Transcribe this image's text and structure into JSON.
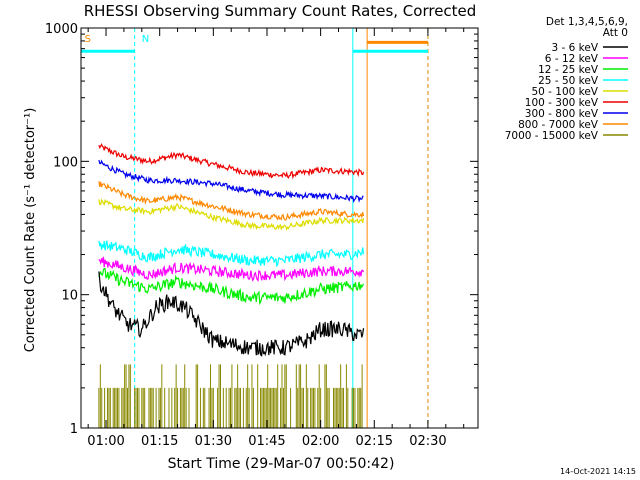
{
  "chart_data": {
    "type": "line",
    "title": "RHESSI Observing Summary Count Rates, Corrected",
    "xlabel": "Start Time (29-Mar-07 00:50:42)",
    "ylabel": "Corrected Count Rate (s⁻¹ detector⁻¹)",
    "y_scale": "log",
    "ylim": [
      1,
      1000
    ],
    "y_ticks": [
      {
        "value": 1,
        "label": "1"
      },
      {
        "value": 10,
        "label": "10"
      },
      {
        "value": 100,
        "label": "100"
      },
      {
        "value": 1000,
        "label": "1000"
      }
    ],
    "xlim_minutes": [
      -7,
      104
    ],
    "x_ticks": [
      {
        "minutes": 0,
        "label": "01:00"
      },
      {
        "minutes": 15,
        "label": "01:15"
      },
      {
        "minutes": 30,
        "label": "01:30"
      },
      {
        "minutes": 45,
        "label": "01:45"
      },
      {
        "minutes": 60,
        "label": "02:00"
      },
      {
        "minutes": 75,
        "label": "02:15"
      },
      {
        "minutes": 90,
        "label": "02:30"
      }
    ],
    "legend": {
      "placement": "right",
      "header": [
        "Det 1,3,4,5,6,9,",
        "Att 0"
      ],
      "entries": [
        {
          "label": "3 - 6 keV",
          "color": "#000000"
        },
        {
          "label": "6 - 12 keV",
          "color": "#ff00ff"
        },
        {
          "label": "12 - 25 keV",
          "color": "#00ee00"
        },
        {
          "label": "25 - 50 keV",
          "color": "#00ffff"
        },
        {
          "label": "50 - 100 keV",
          "color": "#dddd00"
        },
        {
          "label": "100 - 300 keV",
          "color": "#ee0000"
        },
        {
          "label": "300 - 800 keV",
          "color": "#0000ee"
        },
        {
          "label": "800 - 7000 keV",
          "color": "#ff8800"
        },
        {
          "label": "7000 - 15000 keV",
          "color": "#888800"
        }
      ]
    },
    "series": [
      {
        "name": "100 - 300 keV",
        "color": "#ee0000",
        "noise": 0.05,
        "end_minutes": 72,
        "points": [
          [
            -2,
            130
          ],
          [
            5,
            108
          ],
          [
            12,
            100
          ],
          [
            20,
            112
          ],
          [
            30,
            95
          ],
          [
            40,
            82
          ],
          [
            50,
            78
          ],
          [
            60,
            86
          ],
          [
            68,
            84
          ],
          [
            72,
            82
          ]
        ]
      },
      {
        "name": "300 - 800 keV",
        "color": "#0000ee",
        "noise": 0.05,
        "end_minutes": 72,
        "points": [
          [
            -2,
            98
          ],
          [
            5,
            80
          ],
          [
            12,
            72
          ],
          [
            20,
            72
          ],
          [
            30,
            68
          ],
          [
            40,
            60
          ],
          [
            50,
            56
          ],
          [
            60,
            55
          ],
          [
            68,
            53
          ],
          [
            72,
            52
          ]
        ]
      },
      {
        "name": "800 - 7000 keV",
        "color": "#ff8800",
        "noise": 0.05,
        "end_minutes": 72,
        "points": [
          [
            -2,
            68
          ],
          [
            5,
            56
          ],
          [
            12,
            50
          ],
          [
            20,
            54
          ],
          [
            30,
            46
          ],
          [
            40,
            40
          ],
          [
            50,
            38
          ],
          [
            60,
            42
          ],
          [
            68,
            40
          ],
          [
            72,
            40
          ]
        ]
      },
      {
        "name": "50 - 100 keV",
        "color": "#dddd00",
        "noise": 0.05,
        "end_minutes": 72,
        "points": [
          [
            -2,
            50
          ],
          [
            5,
            44
          ],
          [
            12,
            42
          ],
          [
            20,
            46
          ],
          [
            30,
            38
          ],
          [
            40,
            33
          ],
          [
            50,
            32
          ],
          [
            60,
            36
          ],
          [
            68,
            36
          ],
          [
            72,
            36
          ]
        ]
      },
      {
        "name": "25 - 50 keV",
        "color": "#00ffff",
        "noise": 0.09,
        "end_minutes": 72,
        "points": [
          [
            -2,
            24
          ],
          [
            5,
            22
          ],
          [
            12,
            19
          ],
          [
            20,
            22
          ],
          [
            30,
            20
          ],
          [
            40,
            18
          ],
          [
            50,
            18
          ],
          [
            60,
            20
          ],
          [
            68,
            20
          ],
          [
            72,
            21
          ]
        ]
      },
      {
        "name": "6 - 12 keV",
        "color": "#ff00ff",
        "noise": 0.09,
        "end_minutes": 72,
        "points": [
          [
            -2,
            18
          ],
          [
            5,
            16
          ],
          [
            12,
            14
          ],
          [
            20,
            16
          ],
          [
            30,
            15
          ],
          [
            40,
            14
          ],
          [
            50,
            14
          ],
          [
            60,
            15
          ],
          [
            68,
            15
          ],
          [
            72,
            15
          ]
        ]
      },
      {
        "name": "12 - 25 keV",
        "color": "#00ee00",
        "noise": 0.1,
        "end_minutes": 72,
        "points": [
          [
            -2,
            15
          ],
          [
            5,
            12.5
          ],
          [
            12,
            11
          ],
          [
            20,
            12.5
          ],
          [
            30,
            11
          ],
          [
            40,
            9.5
          ],
          [
            50,
            9.5
          ],
          [
            60,
            11
          ],
          [
            68,
            11.5
          ],
          [
            72,
            12
          ]
        ]
      },
      {
        "name": "3 - 6 keV",
        "color": "#000000",
        "noise": 0.14,
        "end_minutes": 72,
        "points": [
          [
            -2,
            13
          ],
          [
            2,
            8
          ],
          [
            6,
            6
          ],
          [
            10,
            5.5
          ],
          [
            14,
            8
          ],
          [
            18,
            9
          ],
          [
            22,
            8
          ],
          [
            26,
            6
          ],
          [
            30,
            4.5
          ],
          [
            40,
            4
          ],
          [
            50,
            4
          ],
          [
            56,
            4.5
          ],
          [
            60,
            5.5
          ],
          [
            66,
            5.5
          ],
          [
            70,
            5
          ],
          [
            72,
            5
          ]
        ]
      },
      {
        "name": "7000 - 15000 keV",
        "color": "#888800",
        "noise": 0,
        "end_minutes": 72,
        "kind": "bars",
        "levels": [
          1,
          2,
          3
        ],
        "points": [
          [
            -2,
            2
          ],
          [
            72,
            2
          ]
        ]
      }
    ],
    "annotations": [
      {
        "text": "S",
        "color": "#ff8800",
        "minutes": -6
      },
      {
        "text": "N",
        "color": "#00ffff",
        "minutes": 10
      }
    ],
    "intervals": [
      {
        "name": "night",
        "color": "#00ffff",
        "from_minutes": -7,
        "to_minutes": 8,
        "level": 670
      },
      {
        "name": "night",
        "color": "#00ffff",
        "from_minutes": 69,
        "to_minutes": 90,
        "level": 670
      },
      {
        "name": "saa",
        "color": "#ff8800",
        "from_minutes": 73,
        "to_minutes": 90,
        "level": 780
      }
    ],
    "vlines": [
      {
        "color": "#00ffff",
        "minutes": -7,
        "dashed": true
      },
      {
        "color": "#00ffff",
        "minutes": 8,
        "dashed": true
      },
      {
        "color": "#00ffff",
        "minutes": 69,
        "dashed": false
      },
      {
        "color": "#00ffff",
        "minutes": 90,
        "dashed": true
      },
      {
        "color": "#ff8800",
        "minutes": 73,
        "dashed": false
      },
      {
        "color": "#ff8800",
        "minutes": 90,
        "dashed": true
      }
    ],
    "grid": false
  },
  "footer": {
    "date_stamp": "14-Oct-2021 14:15"
  }
}
